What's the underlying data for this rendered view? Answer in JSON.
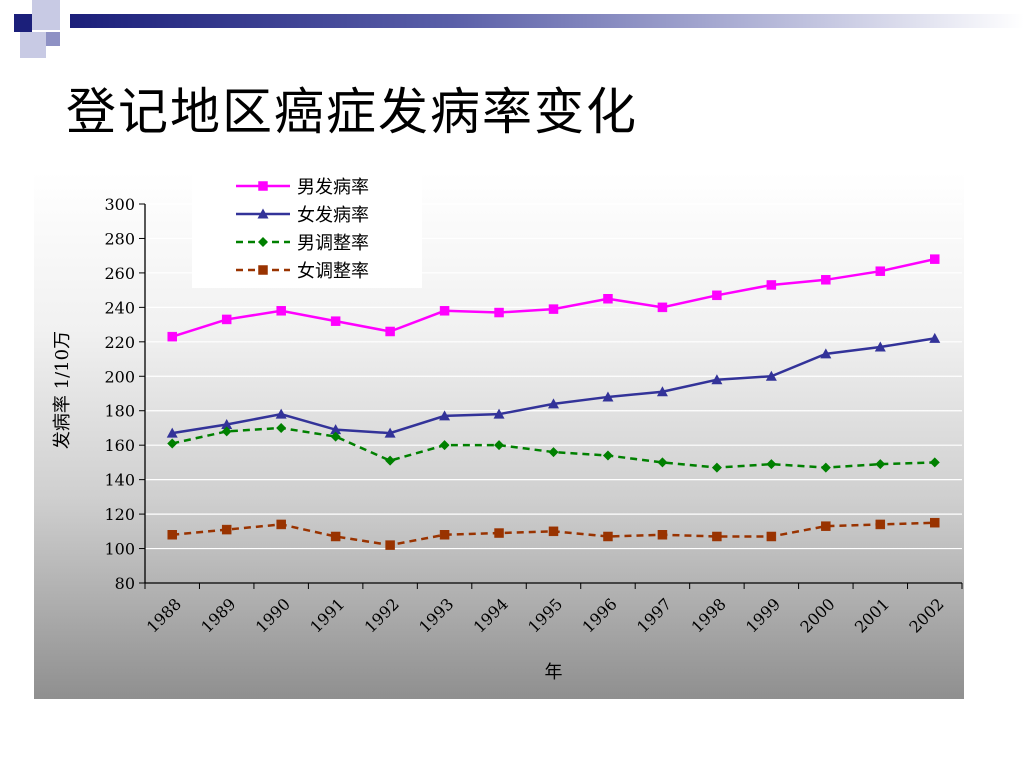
{
  "slide": {
    "title": "登记地区癌症发病率变化"
  },
  "chart_data": {
    "type": "line",
    "title": "",
    "xlabel": "年",
    "ylabel": "发病率 1/10万",
    "ylim": [
      80,
      300
    ],
    "yticks": [
      80,
      100,
      120,
      140,
      160,
      180,
      200,
      220,
      240,
      260,
      280,
      300
    ],
    "categories": [
      "1988",
      "1989",
      "1990",
      "1991",
      "1992",
      "1993",
      "1994",
      "1995",
      "1996",
      "1997",
      "1998",
      "1999",
      "2000",
      "2001",
      "2002"
    ],
    "grid": "horizontal",
    "legend_position": "top-left",
    "series": [
      {
        "name": "男发病率",
        "color": "#ff00ff",
        "dash": "solid",
        "marker": "square",
        "values": [
          223,
          233,
          238,
          232,
          226,
          238,
          237,
          239,
          245,
          240,
          247,
          253,
          256,
          261,
          268
        ]
      },
      {
        "name": "女发病率",
        "color": "#333399",
        "dash": "solid",
        "marker": "triangle",
        "values": [
          167,
          172,
          178,
          169,
          167,
          177,
          178,
          184,
          188,
          191,
          198,
          200,
          213,
          217,
          222
        ]
      },
      {
        "name": "男调整率",
        "color": "#008000",
        "dash": "dashed",
        "marker": "diamond",
        "values": [
          161,
          168,
          170,
          165,
          151,
          160,
          160,
          156,
          154,
          150,
          147,
          149,
          147,
          149,
          150
        ]
      },
      {
        "name": "女调整率",
        "color": "#993300",
        "dash": "dashed",
        "marker": "square",
        "values": [
          108,
          111,
          114,
          107,
          102,
          108,
          109,
          110,
          107,
          108,
          107,
          107,
          113,
          114,
          115
        ]
      }
    ]
  }
}
